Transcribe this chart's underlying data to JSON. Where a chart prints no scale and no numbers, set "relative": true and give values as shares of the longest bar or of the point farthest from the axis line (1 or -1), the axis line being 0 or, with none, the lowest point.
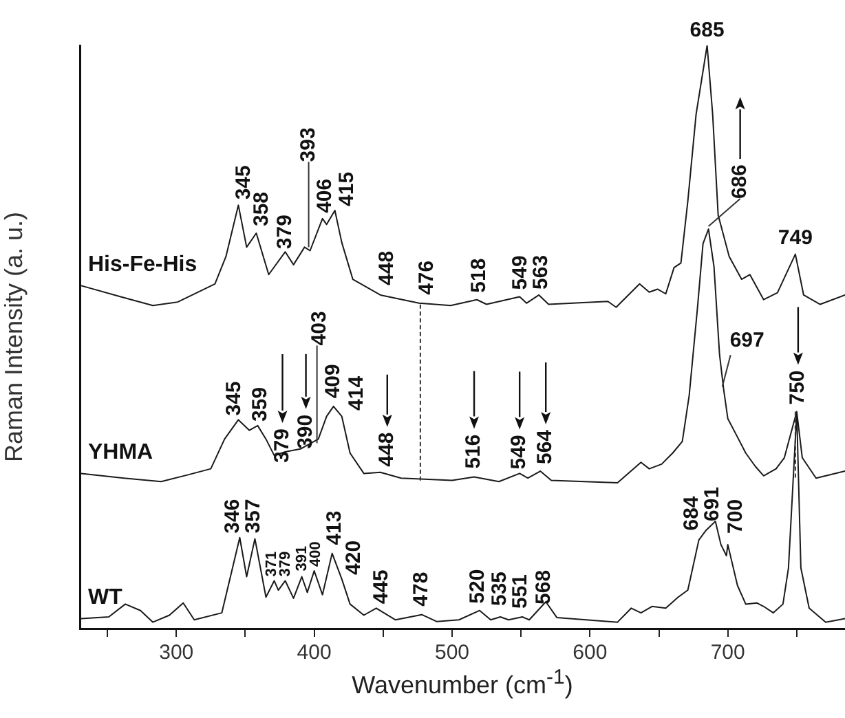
{
  "chart_data": {
    "type": "line",
    "relative": true,
    "xlabel": "Wavenumber (cm$^{-1}$)",
    "ylabel": "Raman Intensity (a. u.)",
    "xlim": [
      230,
      785
    ],
    "xticks": [
      {
        "value": 250,
        "label": null
      },
      300,
      {
        "value": 350,
        "label": null
      },
      400,
      {
        "value": 450,
        "label": null
      },
      500,
      {
        "value": 550,
        "label": null
      },
      600,
      {
        "value": 650,
        "label": null
      },
      700,
      {
        "value": 750,
        "label": null
      }
    ],
    "grid": false,
    "legend": false,
    "marker": "none",
    "line_style": "solid",
    "series": [
      {
        "name": "His-Fe-His",
        "color": "#1a1a1a",
        "x": [
          231,
          261,
          283,
          301,
          328,
          336,
          345,
          351,
          358,
          367,
          379,
          385,
          393,
          397,
          406,
          409,
          415,
          420,
          428,
          448,
          476,
          499,
          518,
          525,
          549,
          554,
          563,
          570,
          613,
          619,
          636,
          643,
          649,
          655,
          661,
          666,
          671,
          677,
          685,
          689,
          693,
          701,
          710,
          716,
          726,
          736,
          749,
          755,
          767,
          785
        ],
        "values": [
          0.588,
          0.568,
          0.554,
          0.56,
          0.591,
          0.638,
          0.726,
          0.654,
          0.678,
          0.607,
          0.646,
          0.624,
          0.654,
          0.648,
          0.703,
          0.693,
          0.717,
          0.662,
          0.599,
          0.572,
          0.558,
          0.554,
          0.564,
          0.556,
          0.569,
          0.558,
          0.572,
          0.556,
          0.561,
          0.551,
          0.591,
          0.577,
          0.582,
          0.574,
          0.619,
          0.627,
          0.733,
          0.882,
          1.0,
          0.882,
          0.709,
          0.638,
          0.599,
          0.607,
          0.564,
          0.576,
          0.642,
          0.572,
          0.556,
          0.572
        ]
      },
      {
        "name": "YHMA",
        "color": "#1a1a1a",
        "x": [
          231,
          262,
          289,
          309,
          325,
          335,
          345,
          353,
          359,
          365,
          371,
          379,
          390,
          403,
          409,
          414,
          420,
          426,
          436,
          448,
          463,
          500,
          516,
          534,
          549,
          555,
          564,
          572,
          620,
          637,
          643,
          652,
          660,
          667,
          672,
          678,
          682,
          686,
          690,
          694,
          697,
          700,
          706,
          713,
          720,
          726,
          735,
          741,
          750,
          754,
          764,
          785
        ],
        "values": [
          0.266,
          0.258,
          0.252,
          0.264,
          0.274,
          0.325,
          0.358,
          0.34,
          0.348,
          0.325,
          0.297,
          0.303,
          0.308,
          0.325,
          0.364,
          0.381,
          0.364,
          0.301,
          0.266,
          0.268,
          0.258,
          0.254,
          0.26,
          0.252,
          0.266,
          0.258,
          0.27,
          0.254,
          0.25,
          0.285,
          0.274,
          0.282,
          0.301,
          0.321,
          0.4,
          0.55,
          0.66,
          0.685,
          0.62,
          0.47,
          0.41,
          0.36,
          0.333,
          0.301,
          0.278,
          0.262,
          0.274,
          0.293,
          0.372,
          0.293,
          0.258,
          0.27
        ]
      },
      {
        "name": "WT",
        "color": "#1a1a1a",
        "x": [
          231,
          251,
          263,
          274,
          283,
          295,
          305,
          313,
          333,
          346,
          351,
          357,
          365,
          371,
          374,
          379,
          385,
          391,
          395,
          400,
          406,
          413,
          420,
          426,
          436,
          445,
          459,
          478,
          489,
          505,
          520,
          528,
          535,
          541,
          551,
          556,
          568,
          576,
          620,
          630,
          637,
          645,
          655,
          664,
          671,
          679,
          684,
          691,
          695,
          699,
          700,
          707,
          713,
          721,
          726,
          733,
          740,
          744,
          750,
          753,
          759,
          771,
          785
        ],
        "values": [
          0.017,
          0.02,
          0.042,
          0.031,
          0.011,
          0.023,
          0.044,
          0.015,
          0.027,
          0.156,
          0.089,
          0.154,
          0.054,
          0.082,
          0.066,
          0.082,
          0.052,
          0.089,
          0.062,
          0.099,
          0.058,
          0.129,
          0.085,
          0.042,
          0.023,
          0.035,
          0.015,
          0.024,
          0.012,
          0.015,
          0.031,
          0.015,
          0.02,
          0.015,
          0.02,
          0.015,
          0.046,
          0.019,
          0.011,
          0.035,
          0.027,
          0.038,
          0.035,
          0.054,
          0.066,
          0.152,
          0.168,
          0.184,
          0.144,
          0.125,
          0.144,
          0.074,
          0.042,
          0.044,
          0.038,
          0.027,
          0.042,
          0.104,
          0.37,
          0.104,
          0.035,
          0.011,
          0.017
        ]
      }
    ],
    "annotations": [
      {
        "text": "345",
        "x": 345,
        "y": 0.726
      },
      {
        "text": "358",
        "x": 358,
        "y": 0.678
      },
      {
        "text": "379",
        "x": 379,
        "y": 0.646
      },
      {
        "text": "393",
        "x": 393,
        "y": 0.654
      },
      {
        "text": "406",
        "x": 406,
        "y": 0.703
      },
      {
        "text": "415",
        "x": 415,
        "y": 0.717
      },
      {
        "text": "448",
        "x": 448,
        "y": 0.572
      },
      {
        "text": "476",
        "x": 476,
        "y": 0.558
      },
      {
        "text": "518",
        "x": 518,
        "y": 0.564
      },
      {
        "text": "549",
        "x": 549,
        "y": 0.569
      },
      {
        "text": "563",
        "x": 563,
        "y": 0.572
      },
      {
        "text": "685",
        "x": 685,
        "y": 1.0
      },
      {
        "text": "686",
        "x": 686,
        "y": 0.685
      },
      {
        "text": "749",
        "x": 749,
        "y": 0.642
      },
      {
        "text": "345",
        "x": 345,
        "y": 0.358
      },
      {
        "text": "359",
        "x": 359,
        "y": 0.348
      },
      {
        "text": "379",
        "x": 379,
        "y": 0.303
      },
      {
        "text": "390",
        "x": 390,
        "y": 0.308
      },
      {
        "text": "403",
        "x": 403,
        "y": 0.325
      },
      {
        "text": "409",
        "x": 409,
        "y": 0.364
      },
      {
        "text": "414",
        "x": 414,
        "y": 0.381
      },
      {
        "text": "448",
        "x": 448,
        "y": 0.268
      },
      {
        "text": "516",
        "x": 516,
        "y": 0.26
      },
      {
        "text": "549",
        "x": 549,
        "y": 0.266
      },
      {
        "text": "564",
        "x": 564,
        "y": 0.27
      },
      {
        "text": "697",
        "x": 697,
        "y": 0.41
      },
      {
        "text": "750",
        "x": 750,
        "y": 0.372
      },
      {
        "text": "346",
        "x": 346,
        "y": 0.156
      },
      {
        "text": "357",
        "x": 357,
        "y": 0.154
      },
      {
        "text": "371",
        "x": 371,
        "y": 0.082
      },
      {
        "text": "379",
        "x": 379,
        "y": 0.082
      },
      {
        "text": "391",
        "x": 391,
        "y": 0.089
      },
      {
        "text": "400",
        "x": 400,
        "y": 0.099
      },
      {
        "text": "413",
        "x": 413,
        "y": 0.129
      },
      {
        "text": "420",
        "x": 420,
        "y": 0.085
      },
      {
        "text": "445",
        "x": 445,
        "y": 0.035
      },
      {
        "text": "478",
        "x": 478,
        "y": 0.024
      },
      {
        "text": "520",
        "x": 520,
        "y": 0.031
      },
      {
        "text": "535",
        "x": 535,
        "y": 0.02
      },
      {
        "text": "551",
        "x": 551,
        "y": 0.02
      },
      {
        "text": "568",
        "x": 568,
        "y": 0.046
      },
      {
        "text": "684",
        "x": 684,
        "y": 0.168
      },
      {
        "text": "691",
        "x": 691,
        "y": 0.184
      },
      {
        "text": "700",
        "x": 700,
        "y": 0.144
      }
    ]
  }
}
